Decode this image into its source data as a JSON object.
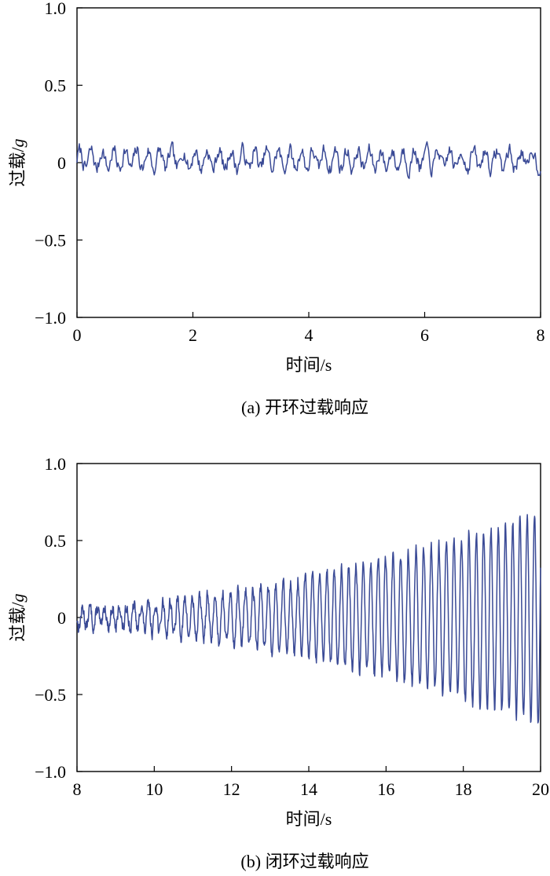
{
  "chart_data": [
    {
      "type": "line",
      "caption": "(a) 开环过载响应",
      "xlabel": "时间/s",
      "ylabel_prefix": "过载/",
      "ylabel_unit": "g",
      "xlim": [
        0,
        8
      ],
      "ylim": [
        -1.0,
        1.0
      ],
      "xticks": [
        0,
        2,
        4,
        6,
        8
      ],
      "xtick_labels": [
        "0",
        "2",
        "4",
        "6",
        "8"
      ],
      "yticks": [
        1.0,
        0.5,
        0,
        -0.5,
        -1.0
      ],
      "ytick_labels": [
        "1.0",
        "0.5",
        "0",
        "−0.5",
        "−1.0"
      ],
      "grid": false,
      "series": [
        {
          "color": "#3a4a96",
          "signal": {
            "t_start": 0,
            "t_end": 8,
            "samples": 600,
            "offset": 0.02,
            "amp_start": 0.06,
            "amp_end": 0.06,
            "freq_hz": 5.0,
            "noise": 0.04,
            "seed": 7
          }
        }
      ]
    },
    {
      "type": "line",
      "caption": "(b) 闭环过载响应",
      "xlabel": "时间/s",
      "ylabel_prefix": "过载/",
      "ylabel_unit": "g",
      "xlim": [
        8,
        20
      ],
      "ylim": [
        -1.0,
        1.0
      ],
      "xticks": [
        8,
        10,
        12,
        14,
        16,
        18,
        20
      ],
      "xtick_labels": [
        "8",
        "10",
        "12",
        "14",
        "16",
        "18",
        "20"
      ],
      "yticks": [
        1.0,
        0.5,
        0,
        -0.5,
        -1.0
      ],
      "ytick_labels": [
        "1.0",
        "0.5",
        "0",
        "−0.5",
        "−1.0"
      ],
      "grid": false,
      "series": [
        {
          "color": "#3a4a96",
          "signal": {
            "t_start": 8,
            "t_end": 20,
            "samples": 1400,
            "offset": 0.0,
            "amp_start": 0.06,
            "amp_end": 0.68,
            "freq_hz": 5.2,
            "noise": 0.035,
            "seed": 13
          }
        }
      ]
    }
  ]
}
